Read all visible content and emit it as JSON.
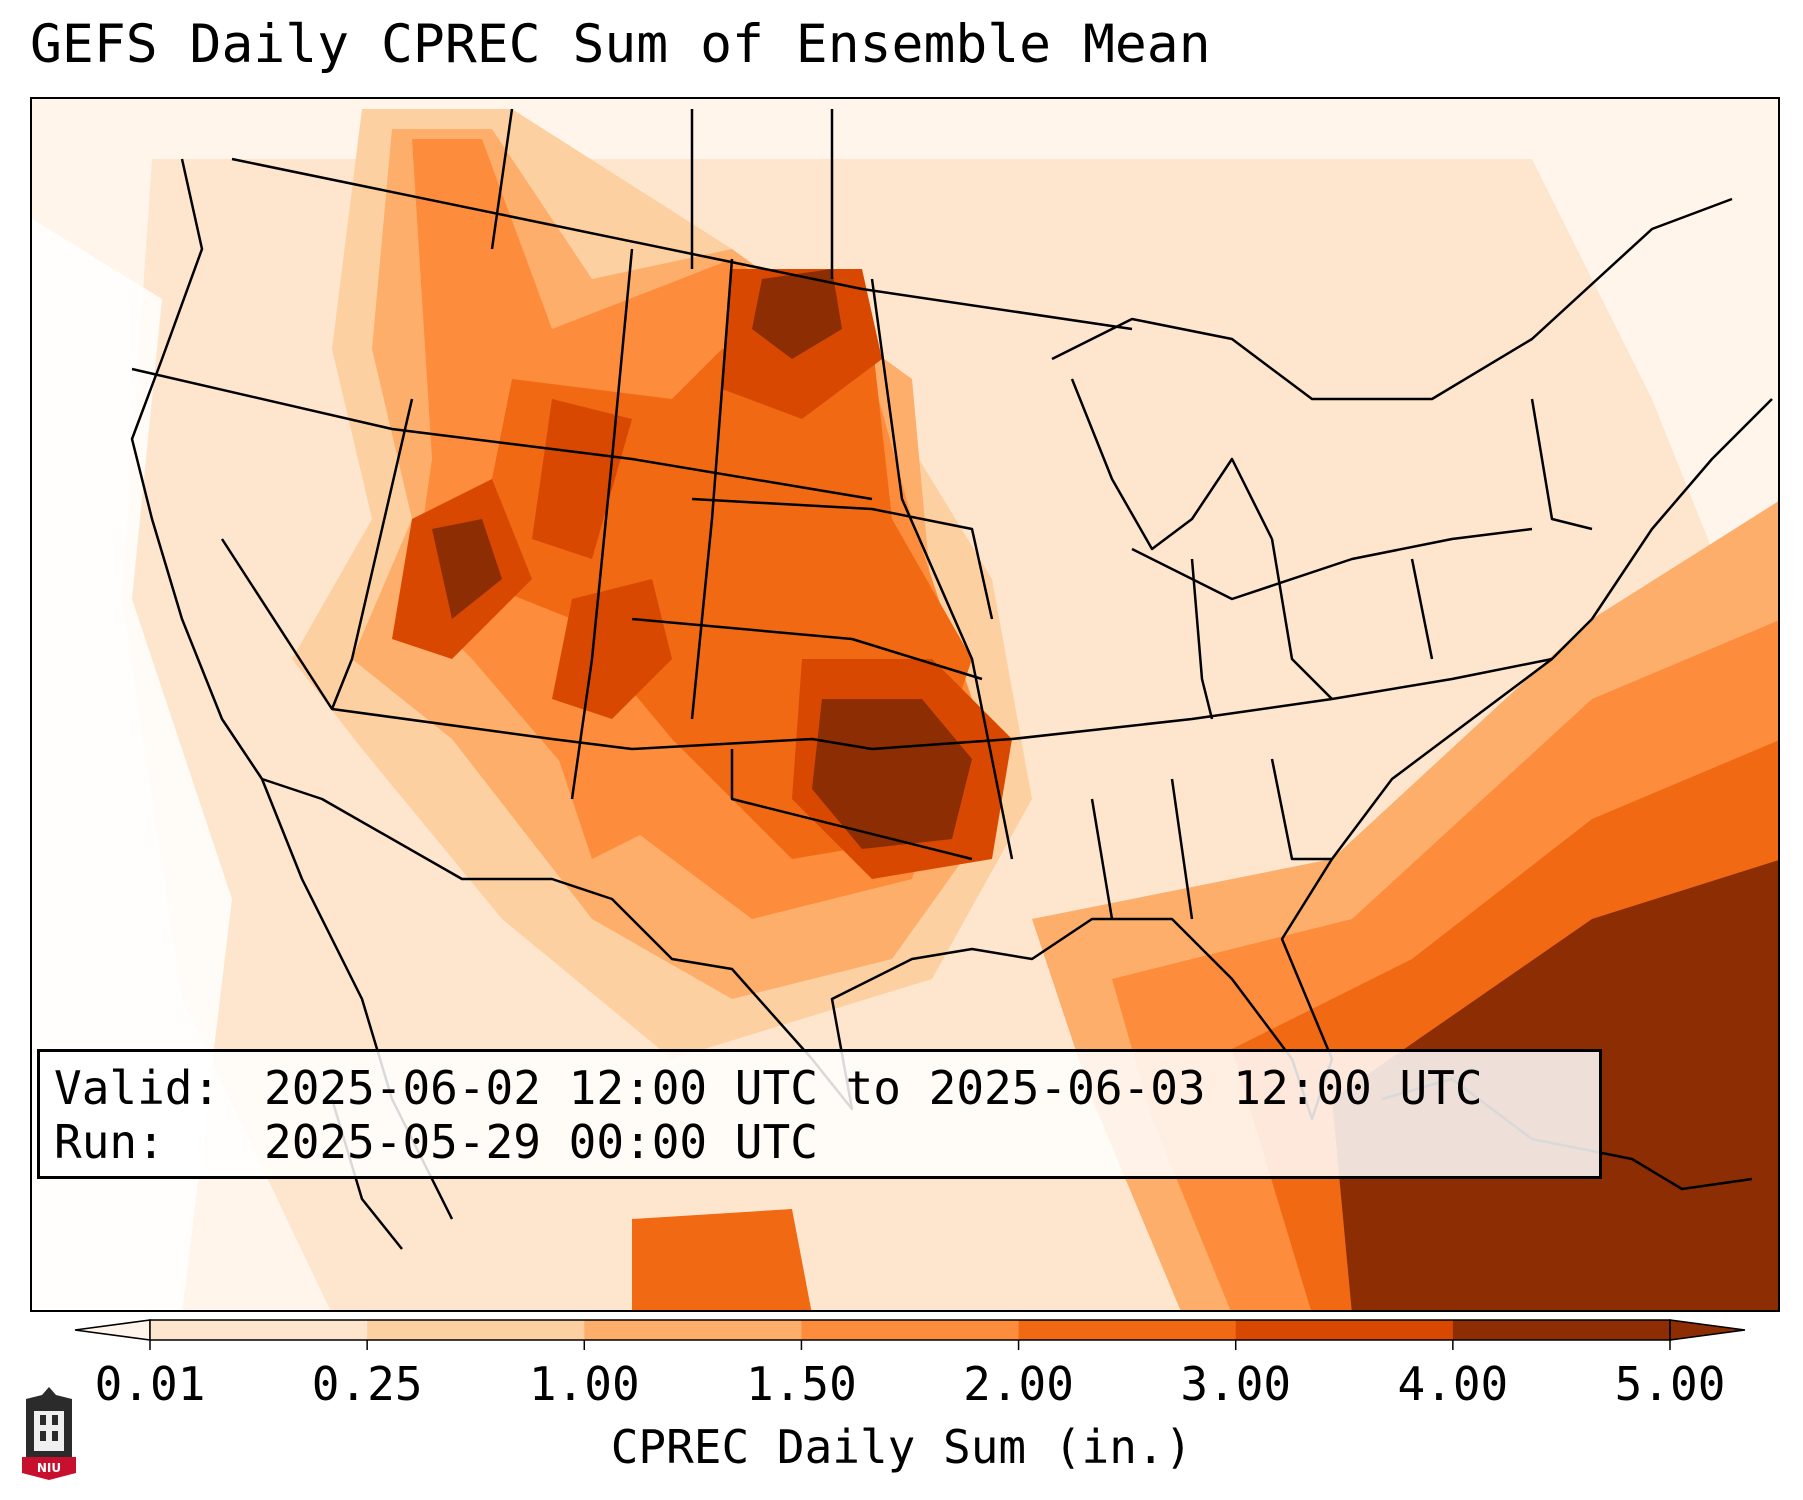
{
  "title": "GEFS Daily CPREC Sum of Ensemble Mean",
  "info": {
    "valid_label": "Valid:",
    "valid_value": "2025-06-02 12:00 UTC to 2025-06-03 12:00 UTC",
    "run_label": "Run:",
    "run_value": "2025-05-29 00:00 UTC"
  },
  "colorbar": {
    "label": "CPREC Daily Sum (in.)",
    "ticks": [
      "0.01",
      "0.25",
      "1.00",
      "1.50",
      "2.00",
      "3.00",
      "4.00",
      "5.00"
    ],
    "colors": [
      "#fff5eb",
      "#fee6ce",
      "#fdd0a2",
      "#fdae6b",
      "#fd8d3c",
      "#f16913",
      "#d94801",
      "#8c2d04"
    ],
    "extend": "both"
  },
  "map": {
    "region": "Contiguous United States",
    "max_areas": [
      "Oklahoma",
      "Western South Dakota",
      "Wyoming",
      "Utah",
      "Southeast Atlantic offshore"
    ]
  },
  "logo": {
    "text": "NIU"
  }
}
